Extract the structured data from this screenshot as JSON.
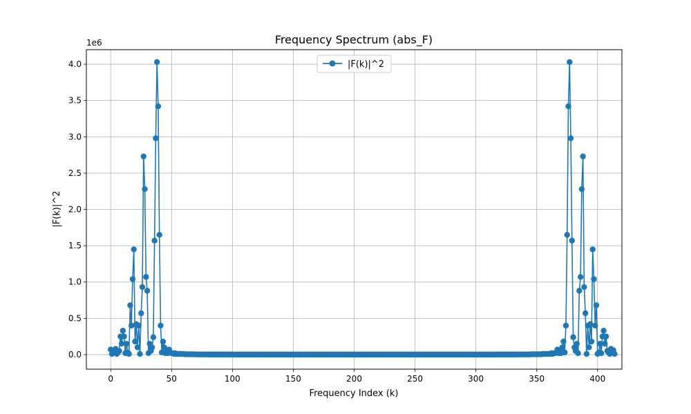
{
  "chart_data": {
    "type": "line",
    "title": "Frequency Spectrum (abs_F)",
    "xlabel": "Frequency Index (k)",
    "ylabel": "|F(k)|^2",
    "y_multiplier_label": "1e6",
    "xlim": [
      -20,
      420
    ],
    "ylim": [
      -0.2,
      4.2
    ],
    "xticks": [
      0,
      50,
      100,
      150,
      200,
      250,
      300,
      350,
      400
    ],
    "yticks": [
      0.0,
      0.5,
      1.0,
      1.5,
      2.0,
      2.5,
      3.0,
      3.5,
      4.0
    ],
    "grid": true,
    "legend_position": "upper center",
    "series": [
      {
        "name": "|F(k)|^2",
        "color": "#1f77b4",
        "marker": "circle",
        "x_start": 0,
        "x_step": 1,
        "values_in_1e6": [
          0.07,
          0.01,
          0.06,
          0.04,
          0.08,
          0.01,
          0.03,
          0.05,
          0.25,
          0.15,
          0.33,
          0.25,
          0.02,
          0.15,
          0.03,
          0.01,
          0.68,
          0.4,
          1.04,
          1.45,
          0.18,
          0.42,
          0.1,
          0.4,
          0.01,
          0.57,
          0.93,
          2.73,
          2.28,
          1.07,
          0.88,
          0.02,
          0.15,
          0.05,
          0.1,
          0.24,
          1.57,
          2.98,
          4.03,
          3.42,
          1.65,
          0.4,
          0.03,
          0.18,
          0.1,
          0.02,
          0.05,
          0.02,
          0.07,
          0.03,
          0.02,
          0.02,
          0.01,
          0.02,
          0.01,
          0.01,
          0.01,
          0.01,
          0.01,
          0.01,
          0.01,
          0.005,
          0.005,
          0.005,
          0.005,
          0.005,
          0.005,
          0.005,
          0.005,
          0.005,
          0.003,
          0.003,
          0.003,
          0.003,
          0.003,
          0.003,
          0.003,
          0.003,
          0.003,
          0.003,
          0.002,
          0.002,
          0.002,
          0.002,
          0.002,
          0.002,
          0.002,
          0.002,
          0.002,
          0.002,
          0.002,
          0.002,
          0.002,
          0.002,
          0.002,
          0.002,
          0.002,
          0.002,
          0.002,
          0.002,
          0.001,
          0.001,
          0.001,
          0.001,
          0.001,
          0.001,
          0.001,
          0.001,
          0.001,
          0.001,
          0.001,
          0.001,
          0.001,
          0.001,
          0.001,
          0.001,
          0.001,
          0.001,
          0.001,
          0.001,
          0.001,
          0.001,
          0.001,
          0.001,
          0.001,
          0.001,
          0.001,
          0.001,
          0.001,
          0.001,
          0.001,
          0.001,
          0.001,
          0.001,
          0.001,
          0.001,
          0.001,
          0.001,
          0.001,
          0.001,
          0.001,
          0.001,
          0.001,
          0.001,
          0.001,
          0.001,
          0.001,
          0.001,
          0.001,
          0.001,
          0.001,
          0.001,
          0.001,
          0.001,
          0.001,
          0.001,
          0.001,
          0.001,
          0.001,
          0.001,
          0.001,
          0.001,
          0.001,
          0.001,
          0.001,
          0.001,
          0.001,
          0.001,
          0.001,
          0.001,
          0.001,
          0.001,
          0.001,
          0.001,
          0.001,
          0.001,
          0.001,
          0.001,
          0.001,
          0.001,
          0.001,
          0.001,
          0.001,
          0.001,
          0.001,
          0.001,
          0.001,
          0.001,
          0.001,
          0.001,
          0.001,
          0.001,
          0.001,
          0.001,
          0.001,
          0.001,
          0.001,
          0.001,
          0.001,
          0.001,
          0.001,
          0.001,
          0.001,
          0.001,
          0.001,
          0.001,
          0.001,
          0.001,
          0.001,
          0.001,
          0.001,
          0.001,
          0.001,
          0.001,
          0.001,
          0.001,
          0.001,
          0.001,
          0.001,
          0.001,
          0.001,
          0.001,
          0.001,
          0.001,
          0.001,
          0.001,
          0.001,
          0.001,
          0.001,
          0.001,
          0.001,
          0.001,
          0.001,
          0.001,
          0.001,
          0.001,
          0.001,
          0.001,
          0.001,
          0.001,
          0.001,
          0.001,
          0.001,
          0.001,
          0.001,
          0.001,
          0.001,
          0.001,
          0.001,
          0.001,
          0.001,
          0.001,
          0.001,
          0.001,
          0.001,
          0.001,
          0.001,
          0.001,
          0.001,
          0.001,
          0.001,
          0.001,
          0.001,
          0.001,
          0.001,
          0.001,
          0.001,
          0.001,
          0.001,
          0.001,
          0.001,
          0.001,
          0.001,
          0.001,
          0.001,
          0.001,
          0.001,
          0.001,
          0.001,
          0.001,
          0.001,
          0.001,
          0.001,
          0.001,
          0.001,
          0.001,
          0.001,
          0.001,
          0.001,
          0.001,
          0.001,
          0.001,
          0.001,
          0.001,
          0.001,
          0.001,
          0.001,
          0.001,
          0.001,
          0.001,
          0.001,
          0.001,
          0.001,
          0.001,
          0.001,
          0.001,
          0.001,
          0.001,
          0.001,
          0.001,
          0.001,
          0.001,
          0.001,
          0.001,
          0.001,
          0.001,
          0.002,
          0.002,
          0.002,
          0.002,
          0.002,
          0.002,
          0.002,
          0.002,
          0.002,
          0.002,
          0.002,
          0.002,
          0.002,
          0.002,
          0.002,
          0.002,
          0.002,
          0.002,
          0.002,
          0.002,
          0.003,
          0.003,
          0.003,
          0.003,
          0.003,
          0.003,
          0.003,
          0.003,
          0.003,
          0.003,
          0.005,
          0.005,
          0.005,
          0.005,
          0.005,
          0.005,
          0.005,
          0.005,
          0.005,
          0.01,
          0.01,
          0.01,
          0.01,
          0.01,
          0.01,
          0.01,
          0.02,
          0.01,
          0.02,
          0.02,
          0.03,
          0.07,
          0.02,
          0.05,
          0.02,
          0.1,
          0.18,
          0.03,
          0.4,
          1.65,
          3.42,
          4.03,
          2.98,
          1.57,
          0.24,
          0.1,
          0.05,
          0.15,
          0.02,
          0.88,
          1.07,
          2.28,
          2.73,
          0.93,
          0.57,
          0.01,
          0.4,
          0.1,
          0.42,
          0.18,
          1.45,
          1.04,
          0.4,
          0.68,
          0.01,
          0.03,
          0.15,
          0.02,
          0.25,
          0.33,
          0.15,
          0.25,
          0.05,
          0.03,
          0.01,
          0.08,
          0.04,
          0.06,
          0.01
        ]
      }
    ]
  }
}
